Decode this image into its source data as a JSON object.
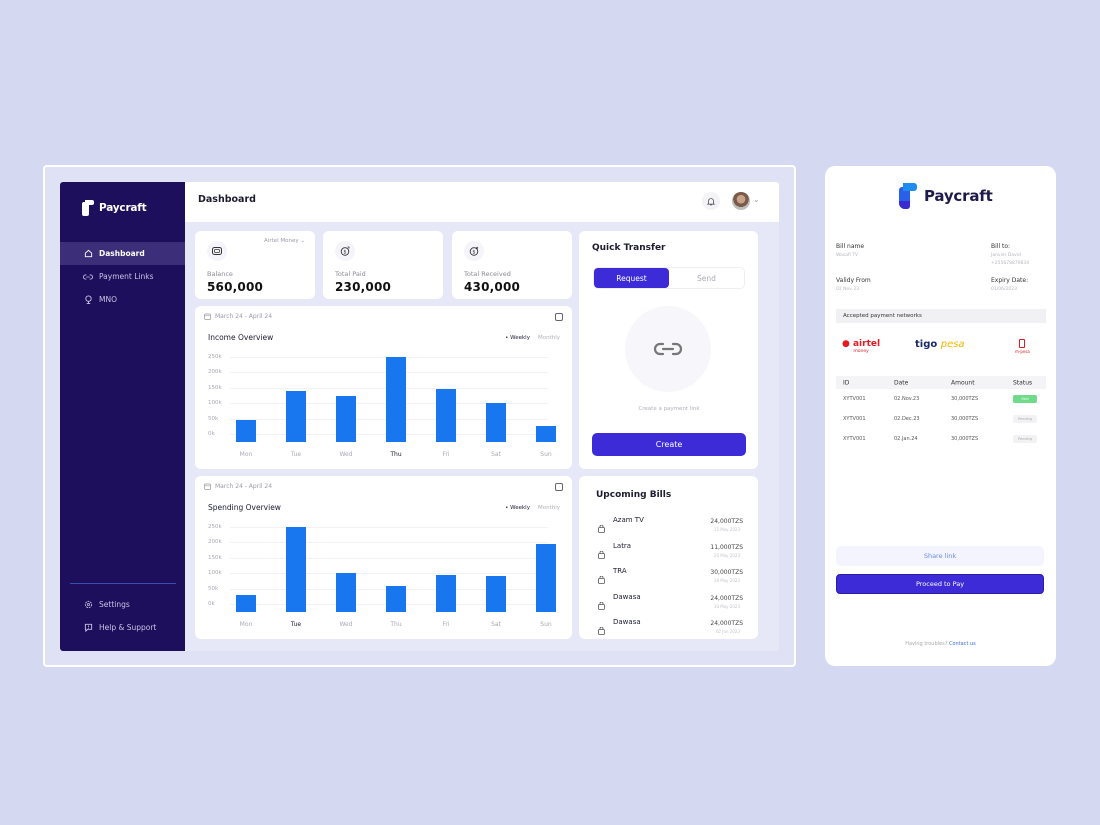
{
  "sidebar": {
    "brand": "Paycraft",
    "items": [
      {
        "label": "Dashboard",
        "icon": "home-icon",
        "active": true
      },
      {
        "label": "Payment Links",
        "icon": "link-icon",
        "active": false
      },
      {
        "label": "MNO",
        "icon": "network-icon",
        "active": false
      }
    ],
    "bottom_items": [
      {
        "label": "Settings",
        "icon": "gear-icon"
      },
      {
        "label": "Help & Support",
        "icon": "help-icon"
      }
    ]
  },
  "header": {
    "title": "Dashboard"
  },
  "stats": [
    {
      "label": "Balance",
      "value": "560,000",
      "selector": "Airtel Money",
      "icon": "wallet-icon"
    },
    {
      "label": "Total Paid",
      "value": "230,000",
      "icon": "dollar-out-icon"
    },
    {
      "label": "Total Received",
      "value": "430,000",
      "icon": "dollar-in-icon"
    }
  ],
  "income_card": {
    "date_range": "March 24 - April 24",
    "title": "Income Overview",
    "toggle_on": "• Weekly",
    "toggle_off": "Monthly"
  },
  "spending_card": {
    "date_range": "March 24 - April 24",
    "title": "Spending Overview",
    "toggle_on": "• Weekly",
    "toggle_off": "Monthly"
  },
  "chart_data": [
    {
      "type": "bar",
      "title": "Income Overview",
      "categories": [
        "Mon",
        "Tue",
        "Wed",
        "Thu",
        "Fri",
        "Sat",
        "Sun"
      ],
      "values": [
        45000,
        140000,
        125000,
        250000,
        145000,
        100000,
        25000
      ],
      "yticks": [
        "250k",
        "200k",
        "150k",
        "100k",
        "50k",
        "0k"
      ],
      "ylim": [
        0,
        250000
      ],
      "highlight": "Thu",
      "color": "#1877ee",
      "grid": true,
      "legend": [
        "Weekly",
        "Monthly"
      ]
    },
    {
      "type": "bar",
      "title": "Spending Overview",
      "categories": [
        "Mon",
        "Tue",
        "Wed",
        "Thu",
        "Fri",
        "Sat",
        "Sun"
      ],
      "values": [
        30000,
        250000,
        100000,
        60000,
        95000,
        90000,
        195000
      ],
      "yticks": [
        "250k",
        "200k",
        "150k",
        "100k",
        "50k",
        "0k"
      ],
      "ylim": [
        0,
        250000
      ],
      "highlight": "Tue",
      "color": "#1877ee",
      "grid": true,
      "legend": [
        "Weekly",
        "Monthly"
      ]
    }
  ],
  "quick_transfer": {
    "title": "Quick Transfer",
    "tabs": [
      "Request",
      "Send"
    ],
    "active_tab": "Request",
    "hint": "Create a payment link",
    "create_label": "Create"
  },
  "upcoming_bills": {
    "title": "Upcoming Bills",
    "items": [
      {
        "name": "Azam TV",
        "amount": "24,000TZS",
        "date": "15 May 2023"
      },
      {
        "name": "Latra",
        "amount": "11,000TZS",
        "date": "20 May 2023"
      },
      {
        "name": "TRA",
        "amount": "30,000TZS",
        "date": "28 May 2023"
      },
      {
        "name": "Dawasa",
        "amount": "24,000TZS",
        "date": "30 May 2023"
      },
      {
        "name": "Dawasa",
        "amount": "24,000TZS",
        "date": "02 Jun 2023"
      }
    ]
  },
  "invoice": {
    "brand": "Paycraft",
    "bill_name_label": "Bill name",
    "bill_name": "Wasafi TV",
    "bill_to_label": "Bill to:",
    "bill_to_name": "Janvier David",
    "bill_to_phone": "+255678879834",
    "valid_from_label": "Validy From",
    "valid_from": "02 Nov 23",
    "expiry_label": "Expiry Date:",
    "expiry": "01/06/2023",
    "networks_label": "Accepted payment networks",
    "networks": [
      "airtel money",
      "tigo pesa",
      "m-pesa"
    ],
    "table": {
      "headers": [
        "ID",
        "Date",
        "Amount",
        "Status"
      ],
      "rows": [
        {
          "id": "XYTV001",
          "date": "02.Nov.23",
          "amount": "30,000TZS",
          "status": "Paid"
        },
        {
          "id": "XYTV001",
          "date": "02.Dec.23",
          "amount": "30,000TZS",
          "status": "Pending"
        },
        {
          "id": "XYTV001",
          "date": "02.Jan.24",
          "amount": "30,000TZS",
          "status": "Pending"
        }
      ]
    },
    "share_label": "Share link",
    "pay_label": "Proceed to Pay",
    "footer_text": "Having troubles?",
    "footer_link": "Contact us"
  },
  "colors": {
    "primary": "#3c2bd6",
    "sidebar": "#1e0f5c",
    "bar": "#1877ee",
    "paid": "#6fdb8a",
    "background": "#d4d8f1"
  }
}
